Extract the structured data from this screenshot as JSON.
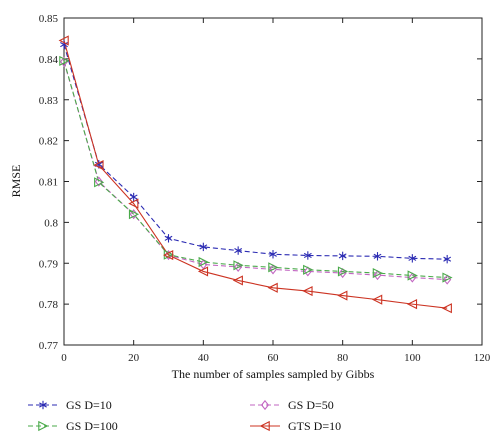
{
  "chart_data": {
    "type": "line",
    "xlabel": "The number of samples sampled by Gibbs",
    "ylabel": "RMSE",
    "xlim": [
      0,
      120
    ],
    "ylim": [
      0.77,
      0.85
    ],
    "xticks": [
      0,
      20,
      40,
      60,
      80,
      100,
      120
    ],
    "yticks": [
      0.77,
      0.78,
      0.79,
      0.8,
      0.81,
      0.82,
      0.83,
      0.84,
      0.85
    ],
    "ytick_labels": [
      "0.77",
      "0.78",
      "0.79",
      "0.8",
      "0.81",
      "0.82",
      "0.83",
      "0.84",
      "0.85"
    ],
    "grid": false,
    "legend_position": "bottom",
    "x": [
      0,
      10,
      20,
      30,
      40,
      50,
      60,
      70,
      80,
      90,
      100,
      110
    ],
    "series": [
      {
        "name": "GS D=10",
        "color": "#2b2bb3",
        "line": "dashed",
        "marker": "asterisk",
        "values": [
          0.8435,
          0.8142,
          0.8062,
          0.7961,
          0.794,
          0.7931,
          0.7922,
          0.7919,
          0.7918,
          0.7917,
          0.7912,
          0.791
        ]
      },
      {
        "name": "GS D=50",
        "color": "#c266c2",
        "line": "dashed",
        "marker": "diamond",
        "values": [
          0.8393,
          0.81,
          0.802,
          0.792,
          0.7897,
          0.7891,
          0.7885,
          0.788,
          0.7876,
          0.7871,
          0.7865,
          0.786
        ]
      },
      {
        "name": "GS D=100",
        "color": "#4aaa4a",
        "line": "dashed",
        "marker": "triangle-right",
        "values": [
          0.8395,
          0.8098,
          0.802,
          0.7921,
          0.7903,
          0.7895,
          0.789,
          0.7884,
          0.788,
          0.7876,
          0.787,
          0.7865
        ]
      },
      {
        "name": "GTS D=10",
        "color": "#cc3322",
        "line": "solid",
        "marker": "triangle-left",
        "values": [
          0.8445,
          0.814,
          0.8046,
          0.792,
          0.788,
          0.7858,
          0.784,
          0.7832,
          0.7821,
          0.7811,
          0.78,
          0.779
        ]
      }
    ]
  }
}
